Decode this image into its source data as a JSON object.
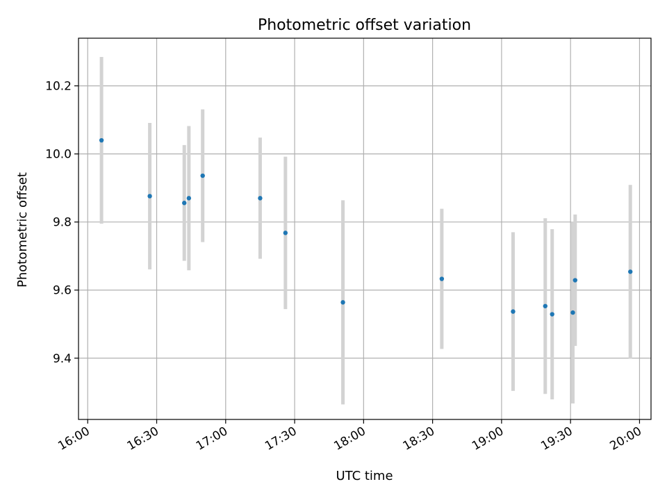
{
  "chart_data": {
    "type": "scatter",
    "title": "Photometric offset variation",
    "xlabel": "UTC time",
    "ylabel": "Photometric offset",
    "x_ticks": [
      "16:00",
      "16:30",
      "17:00",
      "17:30",
      "18:00",
      "18:30",
      "19:00",
      "19:30",
      "20:00"
    ],
    "y_ticks": [
      "9.4",
      "9.6",
      "9.8",
      "10.0",
      "10.2"
    ],
    "xlim": [
      "15:56",
      "20:05"
    ],
    "ylim": [
      9.22,
      10.34
    ],
    "grid": true,
    "point_color": "#1f77b4",
    "errorbar_color": "#d3d3d3",
    "points": [
      {
        "t": "16:06",
        "y": 10.04,
        "err": 0.245
      },
      {
        "t": "16:27",
        "y": 9.876,
        "err": 0.215
      },
      {
        "t": "16:42",
        "y": 9.856,
        "err": 0.17
      },
      {
        "t": "16:44",
        "y": 9.87,
        "err": 0.212
      },
      {
        "t": "16:50",
        "y": 9.936,
        "err": 0.195
      },
      {
        "t": "17:15",
        "y": 9.87,
        "err": 0.178
      },
      {
        "t": "17:26",
        "y": 9.768,
        "err": 0.224
      },
      {
        "t": "17:51",
        "y": 9.564,
        "err": 0.3
      },
      {
        "t": "18:34",
        "y": 9.633,
        "err": 0.206
      },
      {
        "t": "19:05",
        "y": 9.537,
        "err": 0.233
      },
      {
        "t": "19:19",
        "y": 9.553,
        "err": 0.258
      },
      {
        "t": "19:22",
        "y": 9.529,
        "err": 0.25
      },
      {
        "t": "19:31",
        "y": 9.534,
        "err": 0.267
      },
      {
        "t": "19:32",
        "y": 9.629,
        "err": 0.193
      },
      {
        "t": "19:56",
        "y": 9.654,
        "err": 0.255
      }
    ]
  }
}
